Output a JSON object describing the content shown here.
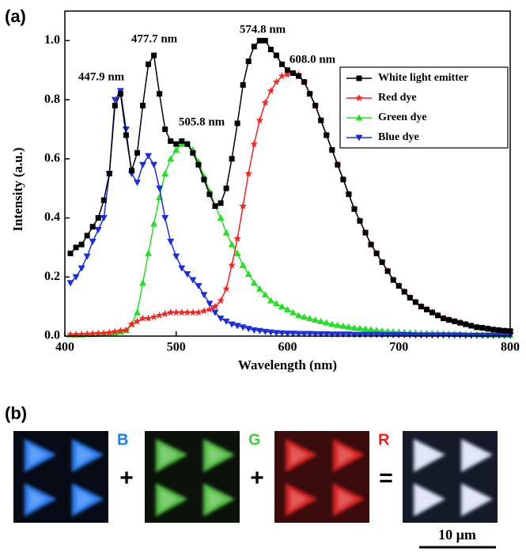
{
  "chart_data": {
    "type": "line",
    "panel_label": "(a)",
    "x_label": "Wavelength (nm)",
    "y_label": "Intensity (a.u.)",
    "xlim": [
      400,
      800
    ],
    "xticks": [
      400,
      500,
      600,
      700,
      800
    ],
    "ylim": [
      0,
      1.1
    ],
    "yticks": [
      {
        "value": 0,
        "label": "0.0"
      },
      0.2,
      0.4,
      0.6,
      0.8,
      {
        "value": 1,
        "label": "1.0"
      }
    ],
    "legend": "upper right",
    "annotations": [
      "447.9 nm",
      "477.7 nm",
      "505.8 nm",
      "574.8 nm",
      "608.0 nm"
    ],
    "x": [
      405,
      410,
      415,
      420,
      425,
      430,
      435,
      440,
      445,
      450,
      455,
      460,
      465,
      470,
      475,
      480,
      485,
      490,
      495,
      500,
      505,
      510,
      515,
      520,
      525,
      530,
      535,
      540,
      545,
      550,
      555,
      560,
      565,
      570,
      575,
      580,
      585,
      590,
      595,
      600,
      605,
      610,
      615,
      620,
      625,
      630,
      635,
      640,
      645,
      650,
      655,
      660,
      665,
      670,
      675,
      680,
      685,
      690,
      695,
      700,
      705,
      710,
      715,
      720,
      725,
      730,
      735,
      740,
      745,
      750,
      755,
      760,
      765,
      770,
      775,
      780,
      785,
      790,
      795,
      800
    ],
    "series": [
      {
        "name": "White light emitter",
        "color": "#000000",
        "marker": "square",
        "values": [
          0.28,
          0.3,
          0.31,
          0.34,
          0.37,
          0.4,
          0.46,
          0.55,
          0.78,
          0.82,
          0.68,
          0.56,
          0.62,
          0.78,
          0.92,
          0.95,
          0.82,
          0.7,
          0.66,
          0.65,
          0.66,
          0.65,
          0.62,
          0.58,
          0.53,
          0.48,
          0.44,
          0.45,
          0.5,
          0.6,
          0.72,
          0.85,
          0.93,
          0.98,
          1.0,
          1.0,
          0.97,
          0.95,
          0.92,
          0.9,
          0.89,
          0.88,
          0.86,
          0.82,
          0.78,
          0.73,
          0.68,
          0.63,
          0.58,
          0.53,
          0.48,
          0.43,
          0.39,
          0.35,
          0.31,
          0.28,
          0.25,
          0.22,
          0.19,
          0.17,
          0.15,
          0.13,
          0.115,
          0.1,
          0.09,
          0.08,
          0.07,
          0.06,
          0.055,
          0.05,
          0.045,
          0.04,
          0.035,
          0.03,
          0.028,
          0.025,
          0.022,
          0.02,
          0.018,
          0.017
        ]
      },
      {
        "name": "Red dye",
        "color": "#ff2020",
        "marker": "star",
        "values": [
          0.005,
          0.005,
          0.006,
          0.007,
          0.008,
          0.009,
          0.01,
          0.012,
          0.015,
          0.018,
          0.02,
          0.04,
          0.05,
          0.06,
          0.06,
          0.065,
          0.07,
          0.075,
          0.08,
          0.08,
          0.08,
          0.08,
          0.08,
          0.08,
          0.085,
          0.09,
          0.1,
          0.12,
          0.16,
          0.24,
          0.33,
          0.44,
          0.55,
          0.65,
          0.73,
          0.79,
          0.83,
          0.86,
          0.88,
          0.885,
          0.89,
          0.885,
          0.86,
          0.82,
          0.78,
          0.73,
          0.68,
          0.63,
          0.58,
          0.53,
          0.48,
          0.43,
          0.39,
          0.35,
          0.31,
          0.28,
          0.25,
          0.22,
          0.19,
          0.17,
          0.15,
          0.13,
          0.115,
          0.1,
          0.09,
          0.08,
          0.07,
          0.06,
          0.055,
          0.05,
          0.045,
          0.04,
          0.035,
          0.03,
          0.028,
          0.025,
          0.022,
          0.02,
          0.018,
          0.017
        ]
      },
      {
        "name": "Green dye",
        "color": "#22e022",
        "marker": "triangle-up",
        "values": [
          0.005,
          0.005,
          0.005,
          0.006,
          0.006,
          0.007,
          0.008,
          0.01,
          0.012,
          0.015,
          0.02,
          0.04,
          0.08,
          0.18,
          0.28,
          0.38,
          0.47,
          0.55,
          0.6,
          0.63,
          0.65,
          0.65,
          0.63,
          0.59,
          0.54,
          0.49,
          0.44,
          0.4,
          0.35,
          0.31,
          0.28,
          0.24,
          0.21,
          0.18,
          0.16,
          0.14,
          0.12,
          0.11,
          0.1,
          0.09,
          0.08,
          0.07,
          0.065,
          0.06,
          0.055,
          0.05,
          0.045,
          0.04,
          0.037,
          0.034,
          0.031,
          0.028,
          0.026,
          0.024,
          0.022,
          0.02,
          0.018,
          0.016,
          0.015,
          0.014,
          0.013,
          0.012,
          0.011,
          0.01,
          0.01,
          0.009,
          0.009,
          0.008,
          0.008,
          0.007,
          0.007,
          0.006,
          0.006,
          0.006,
          0.005,
          0.005,
          0.005,
          0.005,
          0.004,
          0.004
        ]
      },
      {
        "name": "Blue dye",
        "color": "#1a2ee0",
        "marker": "triangle-down",
        "values": [
          0.18,
          0.2,
          0.23,
          0.27,
          0.32,
          0.36,
          0.4,
          0.55,
          0.8,
          0.83,
          0.7,
          0.55,
          0.52,
          0.58,
          0.61,
          0.58,
          0.5,
          0.4,
          0.32,
          0.27,
          0.23,
          0.21,
          0.19,
          0.17,
          0.14,
          0.11,
          0.08,
          0.06,
          0.05,
          0.04,
          0.035,
          0.03,
          0.025,
          0.02,
          0.018,
          0.015,
          0.013,
          0.011,
          0.01,
          0.009,
          0.009,
          0.008,
          0.008,
          0.008,
          0.007,
          0.007,
          0.007,
          0.006,
          0.006,
          0.006,
          0.006,
          0.005,
          0.005,
          0.005,
          0.005,
          0.005,
          0.004,
          0.004,
          0.004,
          0.004,
          0.004,
          0.004,
          0.003,
          0.003,
          0.003,
          0.003,
          0.003,
          0.003,
          0.003,
          0.003,
          0.003,
          0.002,
          0.002,
          0.002,
          0.002,
          0.002,
          0.002,
          0.002,
          0.002,
          0.002
        ]
      }
    ]
  },
  "panel_b": {
    "label": "(b)",
    "letters": [
      "B",
      "G",
      "R"
    ],
    "operators": [
      "+",
      "+",
      "="
    ],
    "scale_bar": "10 µm"
  }
}
